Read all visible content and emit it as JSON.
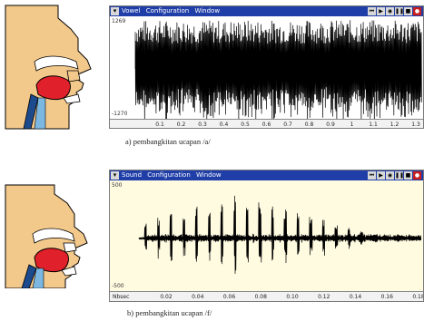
{
  "panel_a": {
    "title_parts": [
      "Vowel",
      "Configuration",
      "Window"
    ],
    "y_max": "1269",
    "y_min": "-1270",
    "x_ticks": [
      "0.1",
      "0.2",
      "0.3",
      "0.4",
      "0.5",
      "0.6",
      "0.7",
      "0.8",
      "0.9",
      "1",
      "1.1",
      "1.2",
      "1.3"
    ],
    "caption": "a) pembangkitan ucapan /a/"
  },
  "panel_b": {
    "title_parts": [
      "Sound",
      "Configuration",
      "Window"
    ],
    "y_max": "500",
    "y_min": "-500",
    "x_unit": "Nbsec",
    "x_ticks": [
      "0.02",
      "0.04",
      "0.06",
      "0.08",
      "0.10",
      "0.12",
      "0.14",
      "0.16",
      "0.18"
    ],
    "caption": "b) pembangkitan ucapan /f/"
  },
  "controls": [
    "skip-back",
    "play",
    "record-mode",
    "pause",
    "stop",
    "record"
  ],
  "colors": {
    "titlebar": "#1f3ea8",
    "plot_a_bg": "#ffffff",
    "plot_b_bg": "#fffbe1",
    "waveform": "#000000",
    "tongue": "#e0202a",
    "skin": "#f3c98b",
    "teeth": "#ffffff",
    "throat": "#1c4a8c",
    "record": "#c81e1e"
  }
}
